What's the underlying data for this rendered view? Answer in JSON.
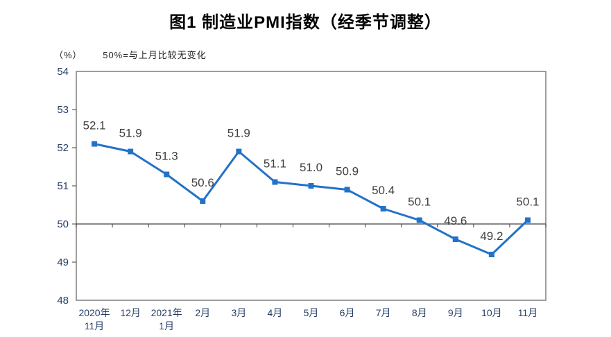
{
  "chart_data": {
    "type": "line",
    "title": "图1 制造业PMI指数（经季节调整）",
    "unit_label": "（%）",
    "note": "50%=与上月比较无变化",
    "categories": [
      "2020年\n11月",
      "12月",
      "2021年\n1月",
      "2月",
      "3月",
      "4月",
      "5月",
      "6月",
      "7月",
      "8月",
      "9月",
      "10月",
      "11月"
    ],
    "values": [
      52.1,
      51.9,
      51.3,
      50.6,
      51.9,
      51.1,
      51.0,
      50.9,
      50.4,
      50.1,
      49.6,
      49.2,
      50.1
    ],
    "data_labels": [
      "52.1",
      "51.9",
      "51.3",
      "50.6",
      "51.9",
      "51.1",
      "51.0",
      "50.9",
      "50.4",
      "50.1",
      "49.6",
      "49.2",
      "50.1"
    ],
    "ylim": [
      48,
      54
    ],
    "y_ticks": [
      48,
      49,
      50,
      51,
      52,
      53,
      54
    ],
    "reference_value": 50,
    "grid": false,
    "legend": false,
    "marker": "square",
    "colors": {
      "series": "#2272C8",
      "data_label": "#404040",
      "axis_label": "#253D66",
      "plot_border": "#7F7F7F",
      "axis_line": "#404040"
    }
  }
}
